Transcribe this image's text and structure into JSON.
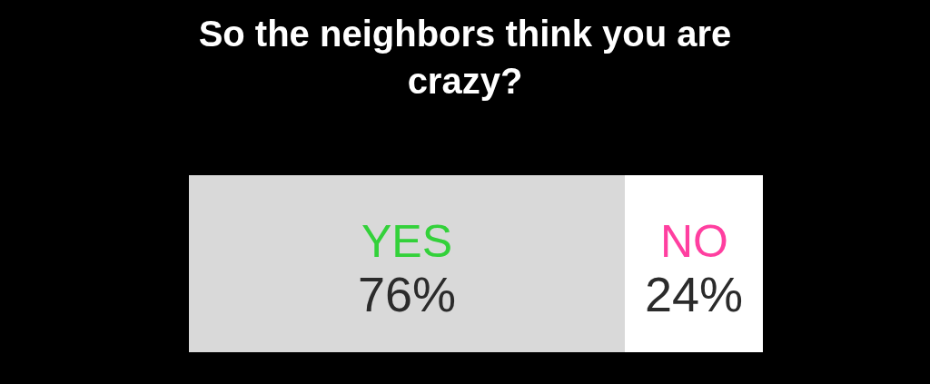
{
  "chart_data": {
    "type": "bar",
    "title": "So the neighbors think you are crazy?",
    "orientation": "horizontal",
    "stacked": true,
    "categories": [
      null
    ],
    "xlim": [
      0,
      100
    ],
    "tick_labels": false,
    "legend": false,
    "series": [
      {
        "name": "YES",
        "color": "#d9d9d9",
        "values": [
          76
        ],
        "value_labels": [
          "76%"
        ]
      },
      {
        "name": "NO",
        "color": "#ffffff",
        "values": [
          24
        ],
        "value_labels": [
          "24%"
        ]
      }
    ]
  }
}
